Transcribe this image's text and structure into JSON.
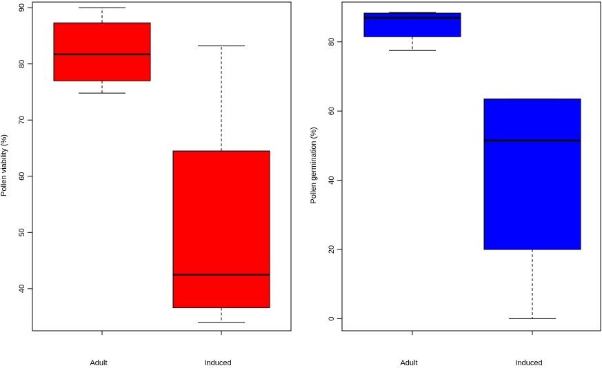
{
  "chart_data": [
    {
      "type": "boxplot",
      "title": "",
      "xlabel": "",
      "ylabel": "Pollen viability (%)",
      "categories": [
        "Adult",
        "Induced"
      ],
      "ylim": [
        32.5,
        91
      ],
      "yticks": [
        40,
        50,
        60,
        70,
        80,
        90
      ],
      "box_color": "#ff0000",
      "series": [
        {
          "name": "Adult",
          "whisker_low": 74.8,
          "q1": 77.0,
          "median": 81.7,
          "q3": 87.3,
          "whisker_high": 90.0
        },
        {
          "name": "Induced",
          "whisker_low": 34.0,
          "q1": 36.6,
          "median": 42.5,
          "q3": 64.5,
          "whisker_high": 83.2
        }
      ]
    },
    {
      "type": "boxplot",
      "title": "",
      "xlabel": "",
      "ylabel": "Pollen germination (%)",
      "categories": [
        "Adult",
        "Induced"
      ],
      "ylim": [
        -3.5,
        91.5
      ],
      "yticks": [
        0,
        20,
        40,
        60,
        80
      ],
      "box_color": "#0000ff",
      "series": [
        {
          "name": "Adult",
          "whisker_low": 77.5,
          "q1": 81.5,
          "median": 87.0,
          "q3": 88.3,
          "whisker_high": 88.5
        },
        {
          "name": "Induced",
          "whisker_low": 0.0,
          "q1": 20.0,
          "median": 51.5,
          "q3": 63.5,
          "whisker_high": 63.5
        }
      ]
    }
  ]
}
